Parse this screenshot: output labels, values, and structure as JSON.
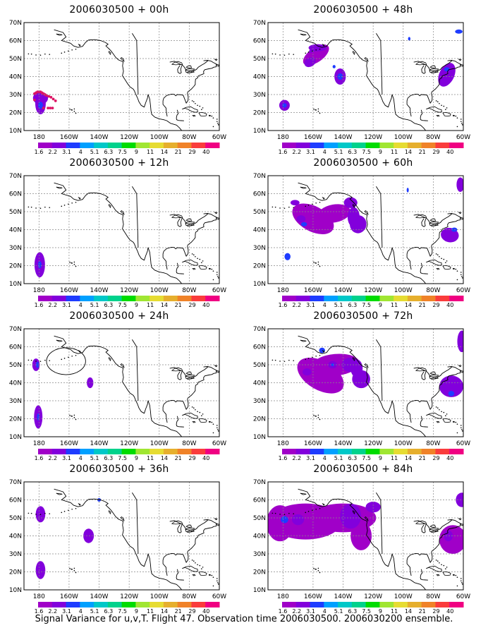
{
  "panels": [
    {
      "id": "p00",
      "title": "2006030500 + 00h"
    },
    {
      "id": "p48",
      "title": "2006030500 + 48h"
    },
    {
      "id": "p12",
      "title": "2006030500 + 12h"
    },
    {
      "id": "p60",
      "title": "2006030500 + 60h"
    },
    {
      "id": "p24",
      "title": "2006030500 + 24h"
    },
    {
      "id": "p72",
      "title": "2006030500 + 72h"
    },
    {
      "id": "p36",
      "title": "2006030500 + 36h"
    },
    {
      "id": "p84",
      "title": "2006030500 + 84h"
    }
  ],
  "y_ticks": [
    "70N",
    "60N",
    "50N",
    "40N",
    "30N",
    "20N",
    "10N"
  ],
  "x_ticks": [
    "180",
    "160W",
    "140W",
    "120W",
    "100W",
    "80W",
    "60W"
  ],
  "colorbar": {
    "labels": [
      "1.6",
      "2.2",
      "3.1",
      "4",
      "5.1",
      "6.3",
      "7.5",
      "9",
      "11",
      "14",
      "21",
      "29",
      "40"
    ],
    "colors": [
      "#a000c8",
      "#8200dc",
      "#1e3cff",
      "#00a0ff",
      "#00c8c8",
      "#00d28c",
      "#00dc00",
      "#a0e632",
      "#e6dc32",
      "#e6af2d",
      "#f08228",
      "#fa3c3c",
      "#f00082"
    ]
  },
  "caption": "Signal Variance for u,v,T. Flight 47. Observation time 2006030500. 2006030200 ensemble."
}
